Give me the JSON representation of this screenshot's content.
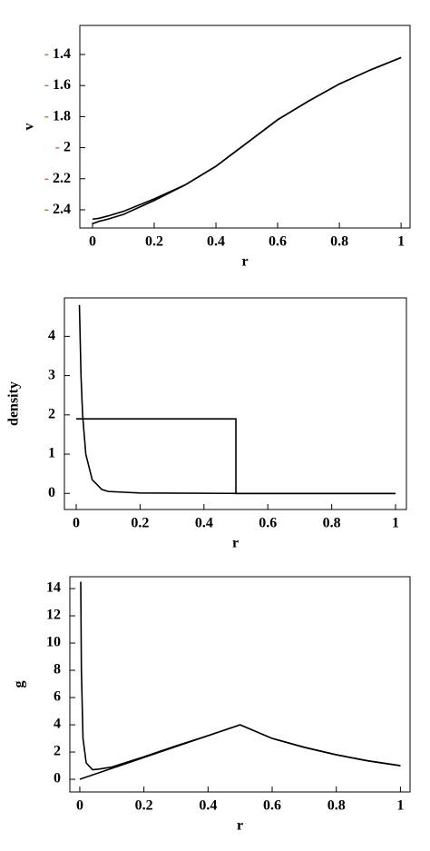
{
  "chart_data": [
    {
      "type": "line",
      "x_label": "r",
      "y_label": "v",
      "xlim": [
        -0.041,
        1.029
      ],
      "ylim": [
        -2.517,
        -1.213
      ],
      "xticks": [
        0,
        0.2,
        0.4,
        0.6,
        0.8,
        1
      ],
      "yticks": [
        {
          "value": -1.4,
          "label": "- 1.4"
        },
        {
          "value": -1.6,
          "label": "- 1.6"
        },
        {
          "value": -1.8,
          "label": "- 1.8"
        },
        {
          "value": -2,
          "label": "- 2"
        },
        {
          "value": -2.2,
          "label": "- 2.2"
        },
        {
          "value": -2.4,
          "label": "- 2.4"
        }
      ],
      "tick_sign_color": "#e06040",
      "series": [
        {
          "color": "#000000",
          "x": [
            0,
            0.02,
            0.05,
            0.1,
            0.2,
            0.3,
            0.4,
            0.5,
            0.6,
            0.7,
            0.8,
            0.9,
            1
          ],
          "values": [
            -2.46,
            -2.455,
            -2.44,
            -2.41,
            -2.33,
            -2.24,
            -2.12,
            -1.97,
            -1.82,
            -1.7,
            -1.59,
            -1.5,
            -1.42
          ]
        },
        {
          "color": "#000000",
          "x": [
            0,
            0.02,
            0.05,
            0.1,
            0.2,
            0.3,
            0.4,
            0.5,
            0.6,
            0.7,
            0.8,
            0.9,
            1
          ],
          "values": [
            -2.49,
            -2.475,
            -2.46,
            -2.43,
            -2.34,
            -2.24,
            -2.12,
            -1.97,
            -1.82,
            -1.7,
            -1.59,
            -1.5,
            -1.42
          ]
        }
      ]
    },
    {
      "type": "line",
      "x_label": "r",
      "y_label": "density",
      "xlim": [
        -0.037,
        1.034
      ],
      "ylim": [
        -0.41,
        4.98
      ],
      "xticks": [
        0,
        0.2,
        0.4,
        0.6,
        0.8,
        1
      ],
      "yticks": [
        0,
        1,
        2,
        3,
        4
      ],
      "series": [
        {
          "color": "#000000",
          "x": [
            0,
            0.5,
            0.5,
            1
          ],
          "values": [
            1.9,
            1.9,
            0,
            0
          ]
        },
        {
          "color": "#000000",
          "x": [
            0.01,
            0.015,
            0.02,
            0.03,
            0.05,
            0.08,
            0.1,
            0.2,
            0.5,
            1
          ],
          "values": [
            4.8,
            3,
            2,
            1,
            0.35,
            0.1,
            0.05,
            0.01,
            0,
            0
          ]
        }
      ]
    },
    {
      "type": "line",
      "x_label": "r",
      "y_label": "g",
      "xlim": [
        -0.031,
        1.03
      ],
      "ylim": [
        -0.93,
        14.87
      ],
      "xticks": [
        0,
        0.2,
        0.4,
        0.6,
        0.8,
        1
      ],
      "yticks": [
        0,
        2,
        4,
        6,
        8,
        10,
        12,
        14
      ],
      "series": [
        {
          "color": "#000000",
          "x": [
            0,
            0.5,
            0.6,
            0.7,
            0.8,
            0.9,
            1
          ],
          "values": [
            0,
            4,
            3,
            2.35,
            1.8,
            1.35,
            1
          ]
        },
        {
          "color": "#000000",
          "x": [
            0.003,
            0.005,
            0.01,
            0.02,
            0.04,
            0.06,
            0.1,
            0.2,
            0.3,
            0.4,
            0.5,
            0.6,
            0.7,
            0.8,
            0.9,
            1
          ],
          "values": [
            14.5,
            8,
            3,
            1.2,
            0.7,
            0.75,
            0.9,
            1.65,
            2.45,
            3.2,
            4,
            3,
            2.35,
            1.8,
            1.35,
            1
          ]
        }
      ]
    }
  ]
}
